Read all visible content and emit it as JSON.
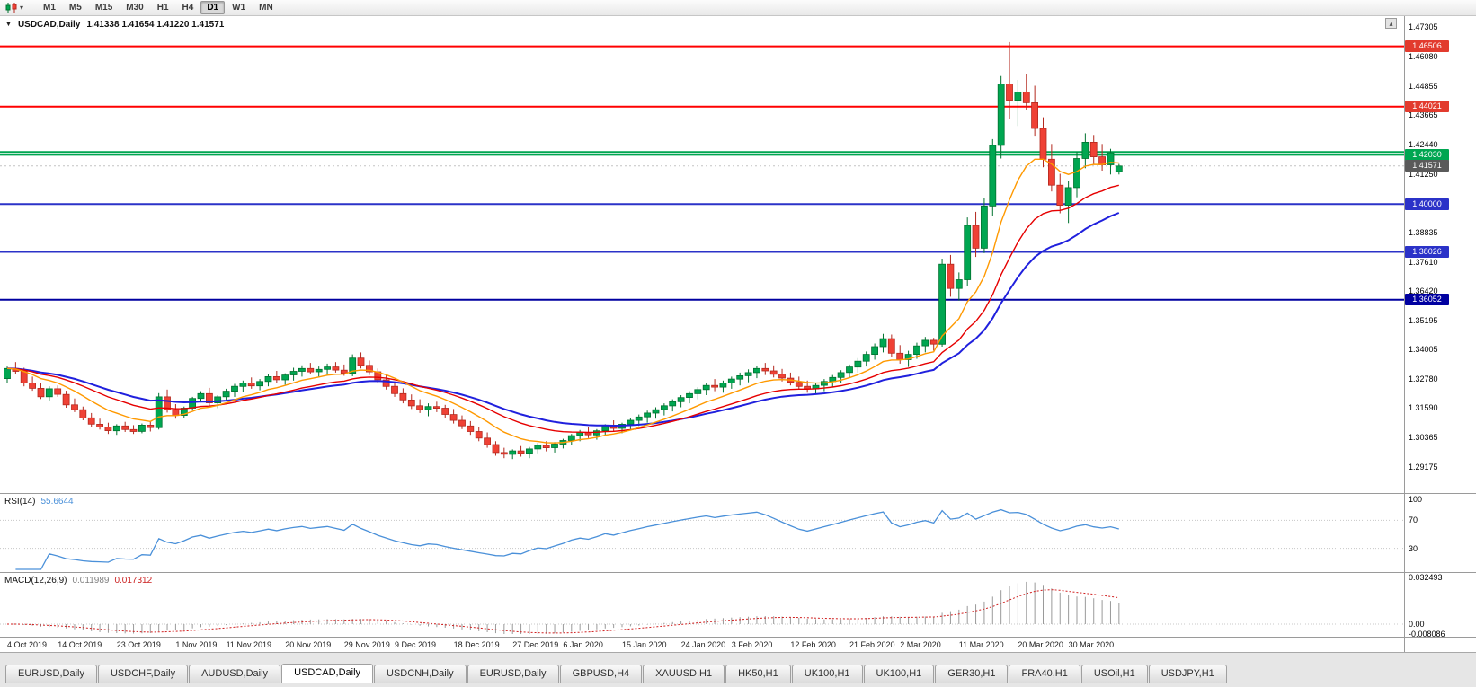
{
  "toolbar": {
    "timeframes": [
      "M1",
      "M5",
      "M15",
      "M30",
      "H1",
      "H4",
      "D1",
      "W1",
      "MN"
    ],
    "active_timeframe": "D1"
  },
  "main_chart": {
    "symbol_title": "USDCAD,Daily",
    "ohlc_text": "1.41338 1.41654 1.41220 1.41571"
  },
  "price_axis": {
    "ticks": [
      "1.47305",
      "1.46080",
      "1.44855",
      "1.43665",
      "1.42440",
      "1.41250",
      "1.40025",
      "1.38835",
      "1.37610",
      "1.36420",
      "1.35195",
      "1.34005",
      "1.32780",
      "1.31590",
      "1.30365",
      "1.29175"
    ]
  },
  "badges": [
    {
      "price": 1.46506,
      "text": "1.46506",
      "color": "#e23b2e"
    },
    {
      "price": 1.44021,
      "text": "1.44021",
      "color": "#e23b2e"
    },
    {
      "price": 1.4203,
      "text": "1.42030",
      "color": "#00a651"
    },
    {
      "price": 1.41571,
      "text": "1.41571",
      "color": "#5a5a5a"
    },
    {
      "price": 1.4,
      "text": "1.40000",
      "color": "#2b32c8"
    },
    {
      "price": 1.38026,
      "text": "1.38026",
      "color": "#2b32c8"
    },
    {
      "price": 1.36052,
      "text": "1.36052",
      "color": "#0000a0"
    }
  ],
  "rsi_pane": {
    "name": "RSI(14)",
    "value": "55.6644",
    "axis_labels": [
      "100",
      "70",
      "30"
    ]
  },
  "macd_pane": {
    "name": "MACD(12,26,9)",
    "value_main": "0.011989",
    "value_signal": "0.017312",
    "axis_labels": [
      {
        "value": 0.032493,
        "text": "0.032493"
      },
      {
        "value": 0,
        "text": "0.00"
      },
      {
        "value": -0.008086,
        "text": "-0.008086"
      }
    ]
  },
  "tabs": [
    {
      "label": "EURUSD,Daily",
      "active": false
    },
    {
      "label": "USDCHF,Daily",
      "active": false
    },
    {
      "label": "AUDUSD,Daily",
      "active": false
    },
    {
      "label": "USDCAD,Daily",
      "active": true
    },
    {
      "label": "USDCNH,Daily",
      "active": false
    },
    {
      "label": "EURUSD,Daily",
      "active": false
    },
    {
      "label": "GBPUSD,H4",
      "active": false
    },
    {
      "label": "XAUUSD,H1",
      "active": false
    },
    {
      "label": "HK50,H1",
      "active": false
    },
    {
      "label": "UK100,H1",
      "active": false
    },
    {
      "label": "UK100,H1",
      "active": false
    },
    {
      "label": "GER30,H1",
      "active": false
    },
    {
      "label": "FRA40,H1",
      "active": false
    },
    {
      "label": "USOil,H1",
      "active": false
    },
    {
      "label": "USDJPY,H1",
      "active": false
    }
  ],
  "chart_data": {
    "type": "candlestick",
    "symbol": "USDCAD",
    "timeframe": "Daily",
    "bid": 1.41571,
    "price_axis_range": {
      "top": 1.47305,
      "bottom": 1.29175
    },
    "style": {
      "up": "#00a651",
      "up_dark": "#00722f",
      "down": "#ef4135",
      "down_dark": "#b3281e",
      "rsi_line": "#4a90d9",
      "macd_hist": "#9a9a9a",
      "macd_signal": "#d02020",
      "bid_line": "#c4c4c4"
    },
    "horizontal_lines": [
      {
        "price": 1.46506,
        "color": "#ff0000",
        "width": 2
      },
      {
        "price": 1.44021,
        "color": "#ff0000",
        "width": 2
      },
      {
        "price": 1.4215,
        "color": "#00a651",
        "width": 2
      },
      {
        "price": 1.4203,
        "color": "#00a651",
        "width": 2
      },
      {
        "price": 1.4,
        "color": "#2b32c8",
        "width": 2
      },
      {
        "price": 1.38026,
        "color": "#2b32c8",
        "width": 2
      },
      {
        "price": 1.36052,
        "color": "#0000a0",
        "width": 2
      }
    ],
    "moving_averages": [
      {
        "period": 30,
        "color": "#2020dd",
        "width": 2
      },
      {
        "period": 20,
        "color": "#e60000",
        "width": 1.4
      },
      {
        "period": 10,
        "color": "#ff9900",
        "width": 1.4
      }
    ],
    "indicators": {
      "rsi": {
        "period": 14,
        "levels": [
          70,
          30
        ],
        "current": 55.6644
      },
      "macd": {
        "fast": 12,
        "slow": 26,
        "signal": 9,
        "current_main": 0.011989,
        "current_signal": 0.017312,
        "axis_max": 0.032493,
        "axis_min": -0.008086
      }
    },
    "x_axis_labels": [
      {
        "i": 0,
        "text": "4 Oct 2019"
      },
      {
        "i": 6,
        "text": "14 Oct 2019"
      },
      {
        "i": 13,
        "text": "23 Oct 2019"
      },
      {
        "i": 20,
        "text": "1 Nov 2019"
      },
      {
        "i": 26,
        "text": "11 Nov 2019"
      },
      {
        "i": 33,
        "text": "20 Nov 2019"
      },
      {
        "i": 40,
        "text": "29 Nov 2019"
      },
      {
        "i": 46,
        "text": "9 Dec 2019"
      },
      {
        "i": 53,
        "text": "18 Dec 2019"
      },
      {
        "i": 60,
        "text": "27 Dec 2019"
      },
      {
        "i": 66,
        "text": "6 Jan 2020"
      },
      {
        "i": 73,
        "text": "15 Jan 2020"
      },
      {
        "i": 80,
        "text": "24 Jan 2020"
      },
      {
        "i": 86,
        "text": "3 Feb 2020"
      },
      {
        "i": 93,
        "text": "12 Feb 2020"
      },
      {
        "i": 100,
        "text": "21 Feb 2020"
      },
      {
        "i": 106,
        "text": "2 Mar 2020"
      },
      {
        "i": 113,
        "text": "11 Mar 2020"
      },
      {
        "i": 120,
        "text": "20 Mar 2020"
      },
      {
        "i": 126,
        "text": "30 Mar 2020"
      }
    ],
    "ohlc": [
      [
        1.328,
        1.333,
        1.3262,
        1.3322
      ],
      [
        1.3322,
        1.3348,
        1.33,
        1.331
      ],
      [
        1.331,
        1.3325,
        1.3248,
        1.3262
      ],
      [
        1.3262,
        1.3288,
        1.323,
        1.324
      ],
      [
        1.324,
        1.3262,
        1.3196,
        1.3205
      ],
      [
        1.3205,
        1.3248,
        1.319,
        1.3238
      ],
      [
        1.3238,
        1.3252,
        1.3205,
        1.3215
      ],
      [
        1.3215,
        1.323,
        1.316,
        1.3172
      ],
      [
        1.3172,
        1.3198,
        1.3142,
        1.3152
      ],
      [
        1.3152,
        1.3165,
        1.3108,
        1.3118
      ],
      [
        1.3118,
        1.3138,
        1.3082,
        1.3092
      ],
      [
        1.3092,
        1.3115,
        1.307,
        1.308
      ],
      [
        1.308,
        1.3098,
        1.3052,
        1.3065
      ],
      [
        1.3065,
        1.3092,
        1.3048,
        1.3085
      ],
      [
        1.3085,
        1.3102,
        1.306,
        1.307
      ],
      [
        1.307,
        1.3088,
        1.3052,
        1.3062
      ],
      [
        1.3062,
        1.3095,
        1.3055,
        1.3088
      ],
      [
        1.3088,
        1.3105,
        1.3062,
        1.3078
      ],
      [
        1.3078,
        1.322,
        1.307,
        1.3205
      ],
      [
        1.3205,
        1.3235,
        1.314,
        1.3152
      ],
      [
        1.3152,
        1.3175,
        1.3115,
        1.3128
      ],
      [
        1.3128,
        1.3165,
        1.3118,
        1.3158
      ],
      [
        1.3158,
        1.3205,
        1.3148,
        1.3198
      ],
      [
        1.3198,
        1.3228,
        1.3182,
        1.3218
      ],
      [
        1.3218,
        1.3242,
        1.3168,
        1.318
      ],
      [
        1.318,
        1.3212,
        1.3158,
        1.3205
      ],
      [
        1.3205,
        1.3238,
        1.3192,
        1.3228
      ],
      [
        1.3228,
        1.3258,
        1.3205,
        1.3248
      ],
      [
        1.3248,
        1.3272,
        1.3225,
        1.3262
      ],
      [
        1.3262,
        1.3285,
        1.3238,
        1.325
      ],
      [
        1.325,
        1.3278,
        1.3232,
        1.3268
      ],
      [
        1.3268,
        1.3298,
        1.3248,
        1.3288
      ],
      [
        1.3288,
        1.3312,
        1.3262,
        1.3275
      ],
      [
        1.3275,
        1.3302,
        1.3255,
        1.3295
      ],
      [
        1.3295,
        1.3325,
        1.3272,
        1.331
      ],
      [
        1.331,
        1.3335,
        1.3288,
        1.3322
      ],
      [
        1.3322,
        1.3345,
        1.3298,
        1.3308
      ],
      [
        1.3308,
        1.333,
        1.3285,
        1.3318
      ],
      [
        1.3318,
        1.3342,
        1.3295,
        1.3328
      ],
      [
        1.3328,
        1.3348,
        1.3305,
        1.3315
      ],
      [
        1.3315,
        1.3338,
        1.3292,
        1.3302
      ],
      [
        1.3302,
        1.338,
        1.329,
        1.3365
      ],
      [
        1.3365,
        1.3388,
        1.3322,
        1.3335
      ],
      [
        1.3335,
        1.3355,
        1.3295,
        1.3308
      ],
      [
        1.3308,
        1.3322,
        1.3262,
        1.3275
      ],
      [
        1.3275,
        1.3295,
        1.3235,
        1.3248
      ],
      [
        1.3248,
        1.3268,
        1.3205,
        1.3218
      ],
      [
        1.3218,
        1.324,
        1.3178,
        1.3192
      ],
      [
        1.3192,
        1.3215,
        1.3155,
        1.3168
      ],
      [
        1.3168,
        1.3195,
        1.3138,
        1.3152
      ],
      [
        1.3152,
        1.3178,
        1.3125,
        1.3165
      ],
      [
        1.3165,
        1.3185,
        1.3142,
        1.3158
      ],
      [
        1.3158,
        1.3172,
        1.3118,
        1.3132
      ],
      [
        1.3132,
        1.3155,
        1.3095,
        1.3108
      ],
      [
        1.3108,
        1.3128,
        1.3072,
        1.3085
      ],
      [
        1.3085,
        1.3105,
        1.3048,
        1.3062
      ],
      [
        1.3062,
        1.3082,
        1.3022,
        1.3035
      ],
      [
        1.3035,
        1.3058,
        1.2995,
        1.3008
      ],
      [
        1.3008,
        1.3022,
        1.2962,
        1.2975
      ],
      [
        1.2975,
        1.2995,
        1.2952,
        1.2968
      ],
      [
        1.2968,
        1.2988,
        1.2948,
        1.2982
      ],
      [
        1.2982,
        1.3002,
        1.2958,
        1.2972
      ],
      [
        1.2972,
        1.2998,
        1.2952,
        1.299
      ],
      [
        1.299,
        1.3015,
        1.2972,
        1.3005
      ],
      [
        1.3005,
        1.3022,
        1.298,
        1.2995
      ],
      [
        1.2995,
        1.3018,
        1.2975,
        1.301
      ],
      [
        1.301,
        1.3032,
        1.2992,
        1.3025
      ],
      [
        1.3025,
        1.3052,
        1.3008,
        1.3045
      ],
      [
        1.3045,
        1.3068,
        1.3022,
        1.3058
      ],
      [
        1.3058,
        1.3082,
        1.3035,
        1.3048
      ],
      [
        1.3048,
        1.3072,
        1.3028,
        1.3065
      ],
      [
        1.3065,
        1.3092,
        1.3048,
        1.3085
      ],
      [
        1.3085,
        1.3108,
        1.3062,
        1.3075
      ],
      [
        1.3075,
        1.3098,
        1.3055,
        1.3092
      ],
      [
        1.3092,
        1.3118,
        1.3072,
        1.3108
      ],
      [
        1.3108,
        1.3132,
        1.3085,
        1.3122
      ],
      [
        1.3122,
        1.3148,
        1.3098,
        1.3138
      ],
      [
        1.3138,
        1.3162,
        1.3115,
        1.3152
      ],
      [
        1.3152,
        1.3178,
        1.3128,
        1.3168
      ],
      [
        1.3168,
        1.3195,
        1.3145,
        1.3185
      ],
      [
        1.3185,
        1.3212,
        1.3162,
        1.3202
      ],
      [
        1.3202,
        1.3228,
        1.3178,
        1.3218
      ],
      [
        1.3218,
        1.3245,
        1.3195,
        1.3235
      ],
      [
        1.3235,
        1.3262,
        1.3212,
        1.3252
      ],
      [
        1.3252,
        1.3278,
        1.3228,
        1.3245
      ],
      [
        1.3245,
        1.3272,
        1.3222,
        1.3262
      ],
      [
        1.3262,
        1.3288,
        1.3238,
        1.3278
      ],
      [
        1.3278,
        1.3305,
        1.3252,
        1.3292
      ],
      [
        1.3292,
        1.3318,
        1.3265,
        1.3305
      ],
      [
        1.3305,
        1.3332,
        1.3282,
        1.3322
      ],
      [
        1.3322,
        1.3345,
        1.3295,
        1.3312
      ],
      [
        1.3312,
        1.3335,
        1.3285,
        1.3298
      ],
      [
        1.3298,
        1.332,
        1.3268,
        1.3282
      ],
      [
        1.3282,
        1.3305,
        1.3252,
        1.3265
      ],
      [
        1.3265,
        1.3288,
        1.3235,
        1.3248
      ],
      [
        1.3248,
        1.3272,
        1.3222,
        1.3238
      ],
      [
        1.3238,
        1.3262,
        1.3215,
        1.3252
      ],
      [
        1.3252,
        1.3278,
        1.3228,
        1.3268
      ],
      [
        1.3268,
        1.3295,
        1.3245,
        1.3285
      ],
      [
        1.3285,
        1.3315,
        1.3262,
        1.3305
      ],
      [
        1.3305,
        1.3338,
        1.3282,
        1.3328
      ],
      [
        1.3328,
        1.3365,
        1.3305,
        1.3352
      ],
      [
        1.3352,
        1.3392,
        1.333,
        1.338
      ],
      [
        1.338,
        1.3425,
        1.3358,
        1.3412
      ],
      [
        1.3412,
        1.3465,
        1.3388,
        1.3445
      ],
      [
        1.3445,
        1.3462,
        1.3368,
        1.3385
      ],
      [
        1.3385,
        1.3418,
        1.3342,
        1.3358
      ],
      [
        1.3358,
        1.3395,
        1.3328,
        1.338
      ],
      [
        1.338,
        1.3428,
        1.3362,
        1.3415
      ],
      [
        1.3415,
        1.3452,
        1.3388,
        1.3438
      ],
      [
        1.3438,
        1.3448,
        1.3395,
        1.3422
      ],
      [
        1.3422,
        1.3775,
        1.3412,
        1.3752
      ],
      [
        1.3752,
        1.379,
        1.3618,
        1.3652
      ],
      [
        1.3652,
        1.3718,
        1.3602,
        1.3688
      ],
      [
        1.3688,
        1.3945,
        1.3662,
        1.3912
      ],
      [
        1.3912,
        1.3968,
        1.3782,
        1.3818
      ],
      [
        1.3818,
        1.4025,
        1.3798,
        1.3992
      ],
      [
        1.3992,
        1.4268,
        1.3952,
        1.4242
      ],
      [
        1.4242,
        1.4528,
        1.4188,
        1.4495
      ],
      [
        1.4495,
        1.4668,
        1.4352,
        1.4428
      ],
      [
        1.4428,
        1.4512,
        1.4322,
        1.4462
      ],
      [
        1.4462,
        1.4538,
        1.4388,
        1.4418
      ],
      [
        1.4418,
        1.4488,
        1.4282,
        1.4312
      ],
      [
        1.4312,
        1.4358,
        1.4152,
        1.4185
      ],
      [
        1.4185,
        1.4248,
        1.4052,
        1.4078
      ],
      [
        1.4078,
        1.4125,
        1.3962,
        1.3995
      ],
      [
        1.3995,
        1.4095,
        1.3922,
        1.4068
      ],
      [
        1.4068,
        1.4215,
        1.4028,
        1.4188
      ],
      [
        1.4188,
        1.4292,
        1.4148,
        1.4255
      ],
      [
        1.4255,
        1.4285,
        1.4165,
        1.4195
      ],
      [
        1.4195,
        1.4248,
        1.4138,
        1.4162
      ],
      [
        1.4162,
        1.4228,
        1.4122,
        1.4212
      ],
      [
        1.41338,
        1.41654,
        1.4122,
        1.41571
      ]
    ]
  }
}
